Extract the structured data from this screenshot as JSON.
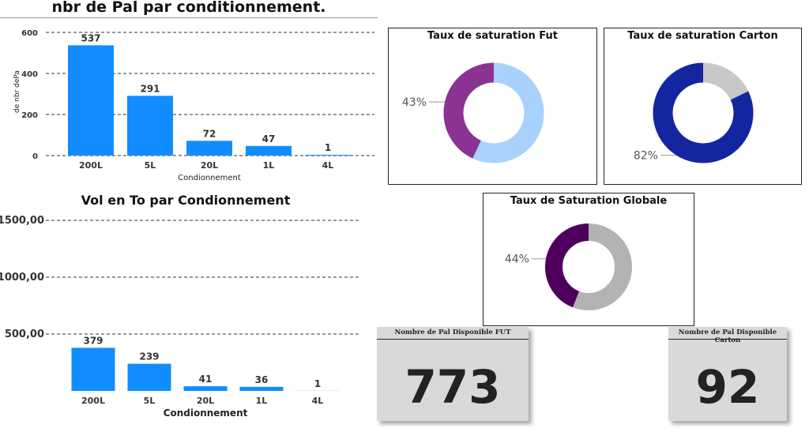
{
  "chart_data": [
    {
      "type": "bar",
      "title": "nbr de Pal par conditionnement.",
      "xlabel": "Condionnement",
      "ylabel": "de nbr dePa",
      "categories": [
        "200L",
        "5L",
        "20L",
        "1L",
        "4L"
      ],
      "values": [
        537,
        291,
        72,
        47,
        1
      ],
      "data_labels": [
        "537",
        "291",
        "72",
        "47",
        "1"
      ],
      "yticks": [
        0,
        200,
        400,
        600
      ],
      "ytick_labels": [
        "0",
        "200",
        "400",
        "600"
      ],
      "ylim": [
        0,
        600
      ],
      "grid": true,
      "color": "#118dff"
    },
    {
      "type": "bar",
      "title": "Vol en To par Condionnement",
      "xlabel": "Condionnement",
      "ylabel": "",
      "categories": [
        "200L",
        "5L",
        "20L",
        "1L",
        "4L"
      ],
      "values": [
        379,
        239,
        41,
        36,
        1
      ],
      "data_labels": [
        "379",
        "239",
        "41",
        "36",
        "1"
      ],
      "yticks": [
        500,
        1000,
        1500
      ],
      "ytick_labels": [
        "500,00",
        "1000,00",
        "1500,00"
      ],
      "ylim": [
        0,
        1500
      ],
      "grid": true,
      "color": "#118dff"
    },
    {
      "type": "pie",
      "title": "Taux de saturation Fut",
      "values": [
        43,
        57
      ],
      "label": "43%",
      "colors": [
        "#8b3393",
        "#a8d1fb"
      ]
    },
    {
      "type": "pie",
      "title": "Taux de saturation Carton",
      "values": [
        82,
        18
      ],
      "label": "82%",
      "colors": [
        "#1326a0",
        "#c8c8c8"
      ]
    },
    {
      "type": "pie",
      "title": "Taux de Saturation Globale",
      "values": [
        44,
        56
      ],
      "label": "44%",
      "colors": [
        "#4f005d",
        "#b3b3b3"
      ]
    }
  ],
  "cards": [
    {
      "title": "Nombre de Pal Disponible FUT",
      "value": "773"
    },
    {
      "title": "Nombre de Pal Disponible Carton",
      "value": "92"
    }
  ]
}
